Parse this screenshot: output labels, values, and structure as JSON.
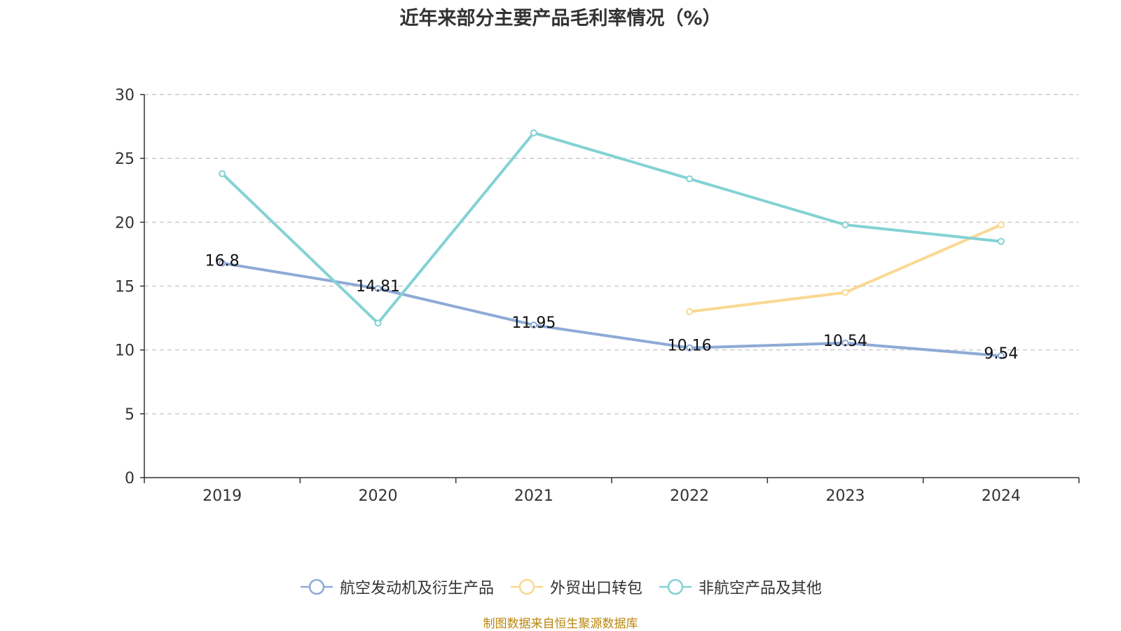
{
  "title": "近年来部分主要产品毛利率情况（%）",
  "source": "制图数据来自恒生聚源数据库",
  "chart_data": {
    "type": "line",
    "title": "近年来部分主要产品毛利率情况（%）",
    "categories": [
      "2019",
      "2020",
      "2021",
      "2022",
      "2023",
      "2024"
    ],
    "ylim": [
      0,
      30
    ],
    "yticks": [
      0,
      5,
      10,
      15,
      20,
      25,
      30
    ],
    "grid": true,
    "legend_position": "bottom",
    "series": [
      {
        "name": "航空发动机及衍生产品",
        "color": "#8EAAD6",
        "values": [
          16.8,
          14.81,
          11.95,
          10.16,
          10.54,
          9.54
        ],
        "labels": [
          "16.8",
          "14.81",
          "11.95",
          "10.16",
          "10.54",
          "9.54"
        ]
      },
      {
        "name": "外贸出口转包",
        "color": "#FAD892",
        "values": [
          null,
          null,
          null,
          13.0,
          14.5,
          19.8
        ],
        "labels": null
      },
      {
        "name": "非航空产品及其他",
        "color": "#84D2D4",
        "values": [
          23.8,
          12.1,
          27.0,
          23.4,
          19.8,
          18.5
        ],
        "labels": null
      }
    ]
  }
}
